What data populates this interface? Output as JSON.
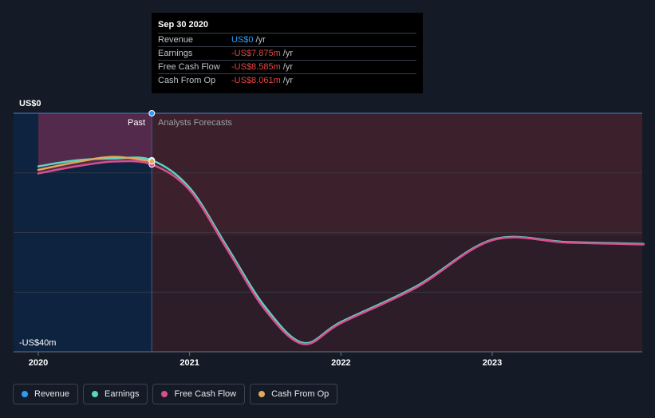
{
  "tooltip": {
    "date": "Sep 30 2020",
    "rows": [
      {
        "label": "Revenue",
        "value": "US$0",
        "unit": "/yr",
        "tone": "blue"
      },
      {
        "label": "Earnings",
        "value": "-US$7.875m",
        "unit": "/yr",
        "tone": "red"
      },
      {
        "label": "Free Cash Flow",
        "value": "-US$8.585m",
        "unit": "/yr",
        "tone": "red"
      },
      {
        "label": "Cash From Op",
        "value": "-US$8.061m",
        "unit": "/yr",
        "tone": "red"
      }
    ]
  },
  "chart_data": {
    "type": "line",
    "y_top_label": "US$0",
    "y_bottom_label": "-US$40m",
    "ylim": [
      -40,
      0
    ],
    "xlim": [
      2020.0,
      2024.0
    ],
    "x_ticks": [
      "2020",
      "2021",
      "2022",
      "2023"
    ],
    "x_tick_values": [
      2020.0,
      2021.0,
      2022.0,
      2023.0
    ],
    "past_label": "Past",
    "forecast_label": "Analysts Forecasts",
    "divider_x": 2020.75,
    "grid": true,
    "series": [
      {
        "name": "Revenue",
        "color": "#2a9df4",
        "points": [
          [
            2020.75,
            0.0
          ]
        ]
      },
      {
        "name": "Earnings",
        "color": "#58d6c2",
        "points": [
          [
            2020.0,
            -8.9
          ],
          [
            2020.25,
            -7.9
          ],
          [
            2020.5,
            -7.6
          ],
          [
            2020.75,
            -7.875
          ],
          [
            2021.0,
            -12.5
          ],
          [
            2021.25,
            -22.5
          ],
          [
            2021.5,
            -32.5
          ],
          [
            2021.75,
            -38.5
          ],
          [
            2022.0,
            -35.0
          ],
          [
            2022.5,
            -29.0
          ],
          [
            2023.0,
            -21.2
          ],
          [
            2023.5,
            -21.6
          ],
          [
            2024.0,
            -21.9
          ]
        ]
      },
      {
        "name": "Free Cash Flow",
        "color": "#d64f8f",
        "points": [
          [
            2020.0,
            -10.1
          ],
          [
            2020.25,
            -8.9
          ],
          [
            2020.5,
            -8.1
          ],
          [
            2020.75,
            -8.585
          ],
          [
            2021.0,
            -12.9
          ],
          [
            2021.25,
            -22.9
          ],
          [
            2021.5,
            -33.0
          ],
          [
            2021.75,
            -38.7
          ],
          [
            2022.0,
            -35.2
          ],
          [
            2022.5,
            -29.2
          ],
          [
            2023.0,
            -21.3
          ],
          [
            2023.5,
            -21.7
          ],
          [
            2024.0,
            -22.0
          ]
        ]
      },
      {
        "name": "Cash From Op",
        "color": "#e5a85a",
        "points": [
          [
            2020.0,
            -9.5
          ],
          [
            2020.25,
            -8.2
          ],
          [
            2020.5,
            -7.3
          ],
          [
            2020.75,
            -8.061
          ]
        ]
      }
    ]
  },
  "legend": [
    {
      "label": "Revenue",
      "color": "#2a9df4"
    },
    {
      "label": "Earnings",
      "color": "#58d6c2"
    },
    {
      "label": "Free Cash Flow",
      "color": "#d64f8f"
    },
    {
      "label": "Cash From Op",
      "color": "#e5a85a"
    }
  ]
}
